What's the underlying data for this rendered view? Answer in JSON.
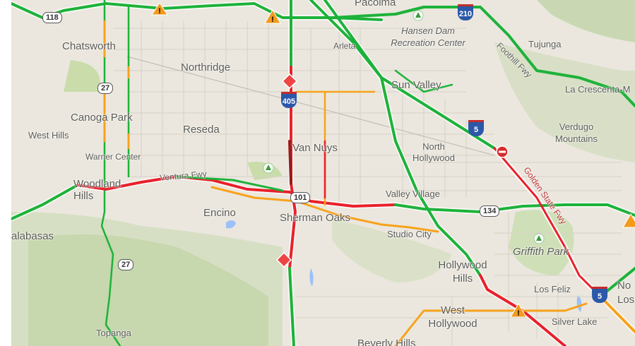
{
  "places": {
    "chatsworth": "Chatsworth",
    "northridge": "Northridge",
    "canoga_park": "Canoga Park",
    "west_hills": "West Hills",
    "reseda": "Reseda",
    "warner_center": "Warner Center",
    "woodland_hills": "Woodland Hills",
    "calabasas": "alabasas",
    "encino": "Encino",
    "van_nuys": "Van Nuys",
    "sherman_oaks": "Sherman Oaks",
    "north_hollywood": "North Hollywood",
    "valley_village": "Valley Village",
    "studio_city": "Studio City",
    "sun_valley": "Sun Valley",
    "arleta": "Arleta",
    "pacoima": "Pacoima",
    "hansen_dam": "Hansen Dam Recreation Center",
    "tujunga": "Tujunga",
    "la_crescenta": "La Crescenta-M",
    "verdugo": "Verdugo Mountains",
    "griffith_park": "Griffith Park",
    "hollywood_hills": "Hollywood Hills",
    "los_feliz": "Los Feliz",
    "west_hollywood": "West Hollywood",
    "silver_lake": "Silver Lake",
    "beverly_hills": "Beverly Hills",
    "topanga": "Topanga",
    "north_la": "No Los"
  },
  "roads": {
    "ventura_fwy": "Ventura Fwy",
    "foothill_fwy": "Foothill Fwy",
    "golden_state_fwy": "Golden State Fwy"
  },
  "shields": {
    "sr118": "118",
    "sr27a": "27",
    "sr27b": "27",
    "i405": "405",
    "us101": "101",
    "sr134": "134",
    "i5a": "5",
    "i5b": "5",
    "i210": "210"
  },
  "traffic_colors": {
    "fast": "#1db23a",
    "medium": "#f7a21b",
    "slow": "#e8212b",
    "stopped": "#9b1a1a"
  }
}
